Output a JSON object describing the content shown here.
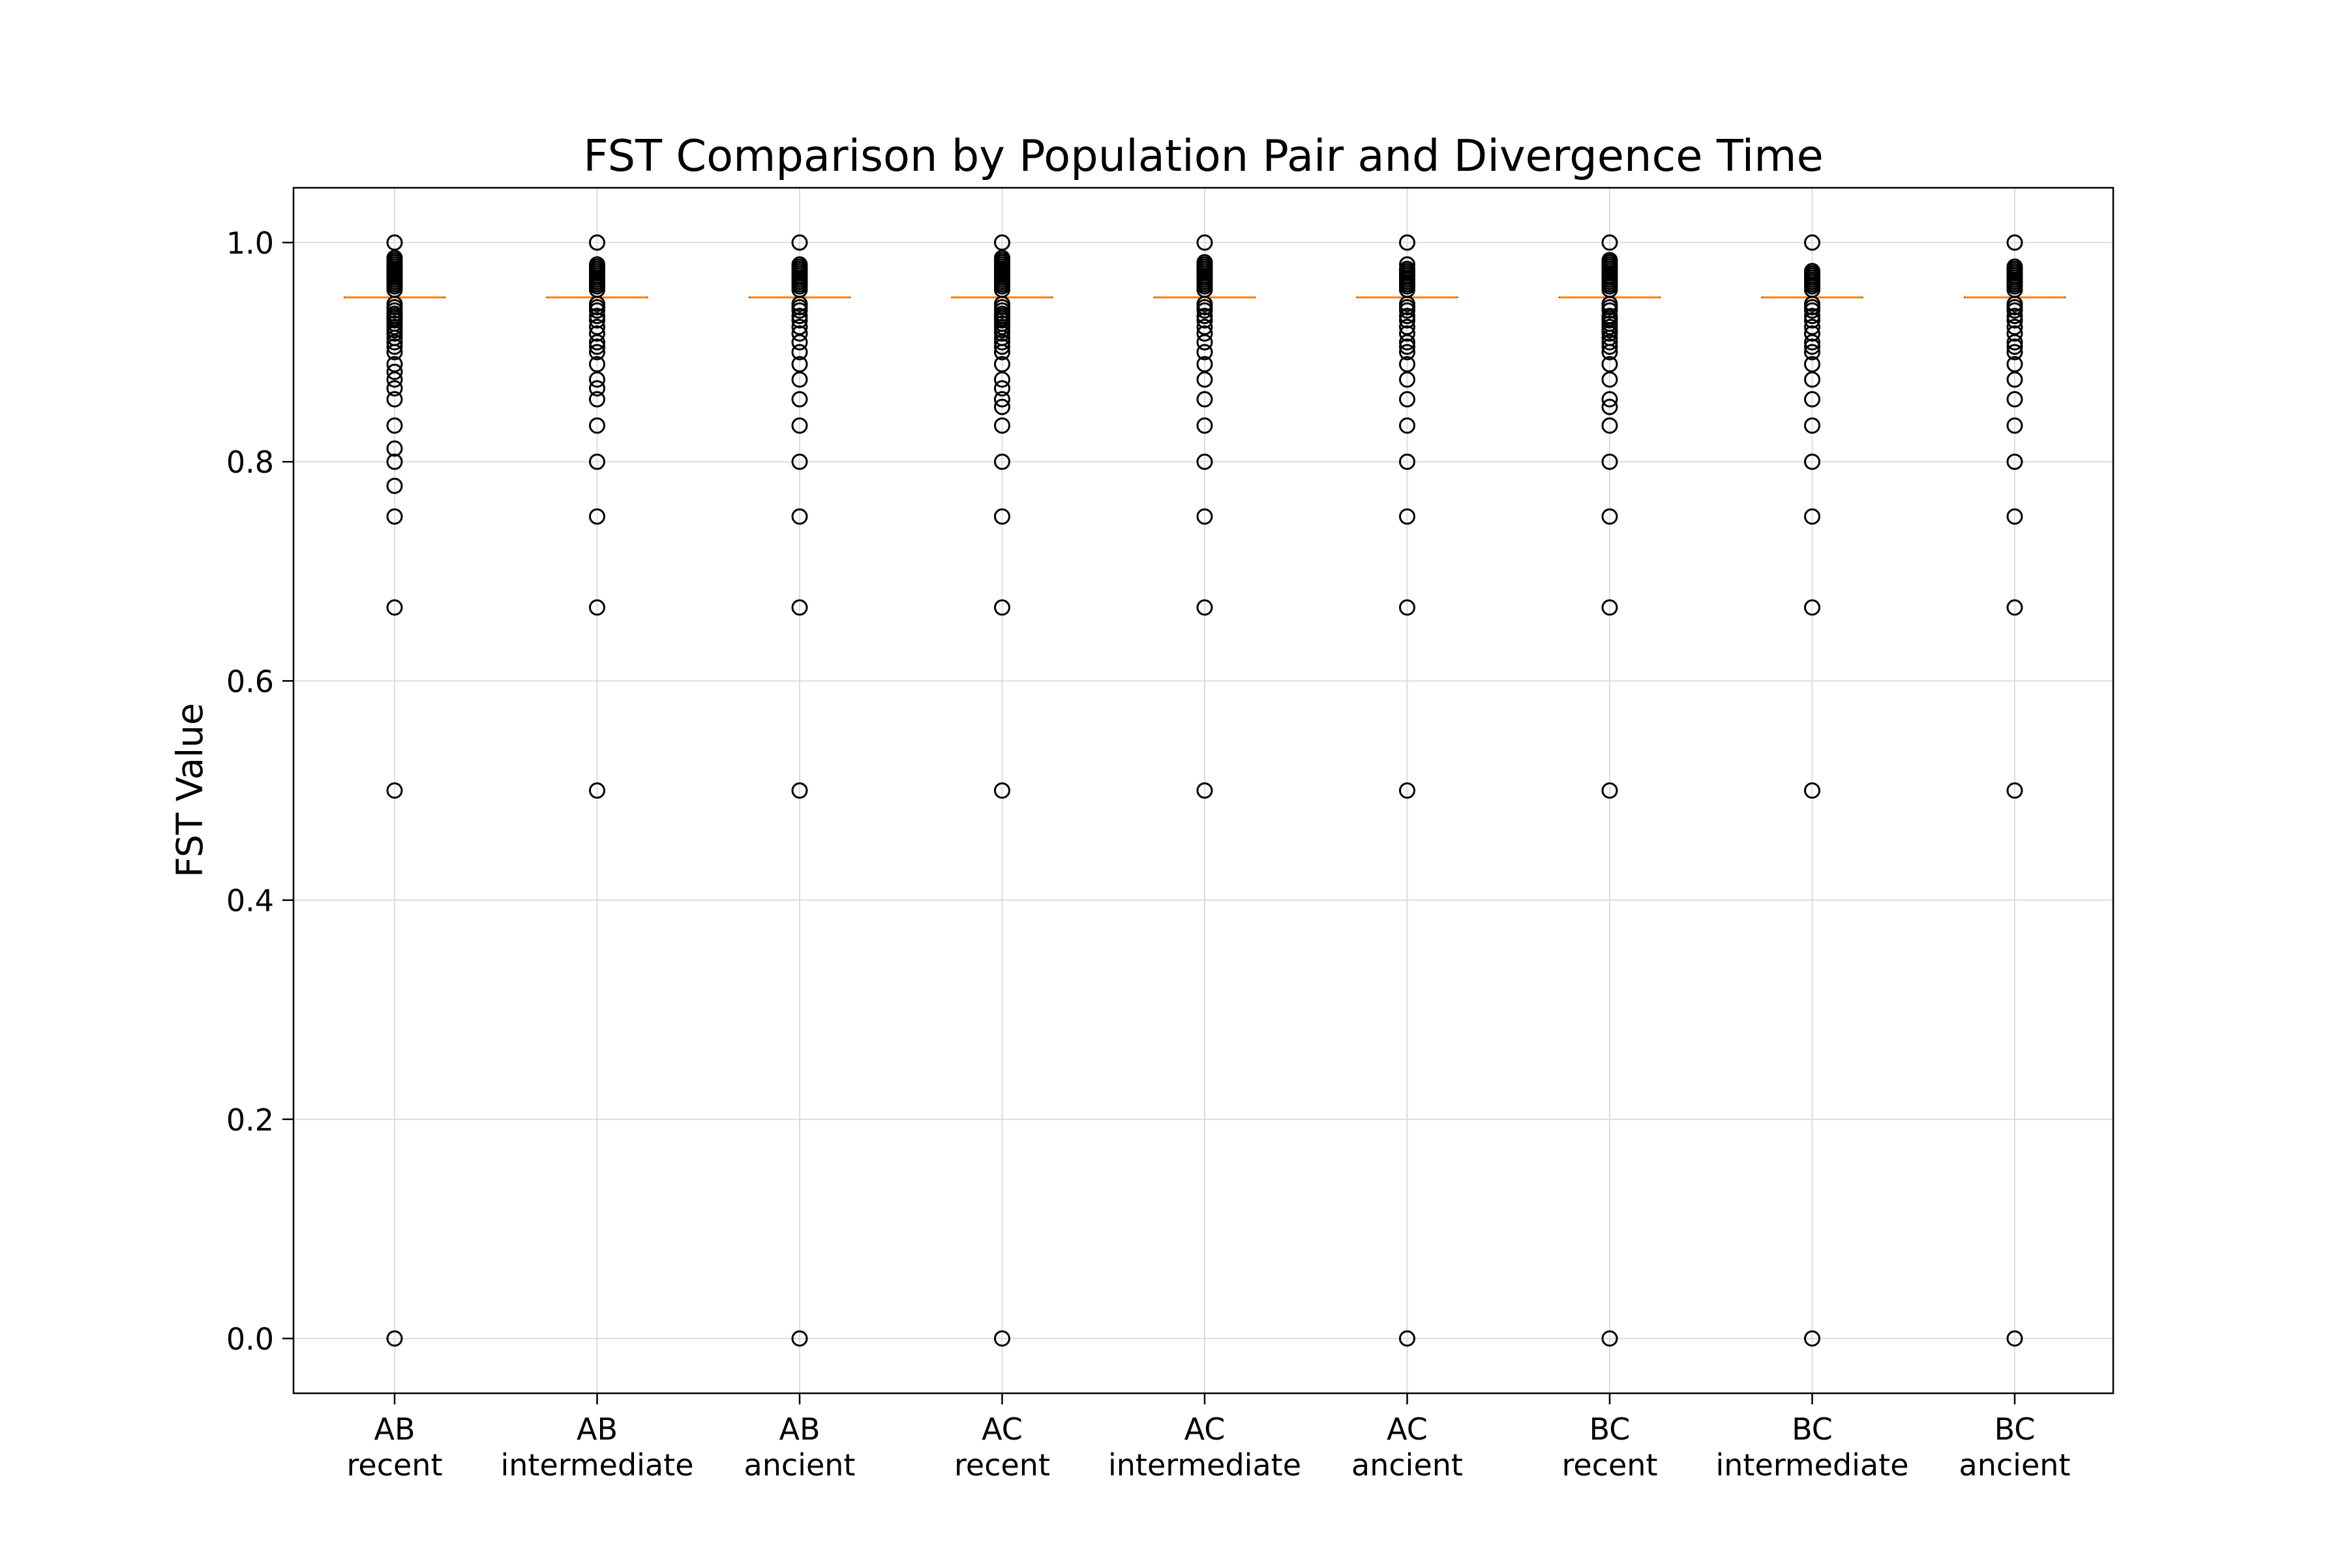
{
  "chart_data": {
    "type": "box",
    "title": "FST Comparison by Population Pair and Divergence Time",
    "xlabel": "",
    "ylabel": "FST Value",
    "ylim": [
      -0.05,
      1.05
    ],
    "yticks": [
      0.0,
      0.2,
      0.4,
      0.6,
      0.8,
      1.0
    ],
    "ytick_labels": [
      "0.0",
      "0.2",
      "0.4",
      "0.6",
      "0.8",
      "1.0"
    ],
    "grid": true,
    "colors": {
      "median": "#ff7f0e",
      "flier": "#000000",
      "grid": "#dddddd",
      "axes": "#000000"
    },
    "categories": [
      {
        "pair": "AB",
        "time": "recent"
      },
      {
        "pair": "AB",
        "time": "intermediate"
      },
      {
        "pair": "AB",
        "time": "ancient"
      },
      {
        "pair": "AC",
        "time": "recent"
      },
      {
        "pair": "AC",
        "time": "intermediate"
      },
      {
        "pair": "AC",
        "time": "ancient"
      },
      {
        "pair": "BC",
        "time": "recent"
      },
      {
        "pair": "BC",
        "time": "intermediate"
      },
      {
        "pair": "BC",
        "time": "ancient"
      }
    ],
    "series": [
      {
        "median": 0.95,
        "q1": 0.95,
        "q3": 0.95,
        "fliers": [
          0.0,
          0.5,
          0.667,
          0.75,
          0.778,
          0.8,
          0.812,
          0.833,
          0.857,
          0.867,
          0.875,
          0.882,
          0.889,
          0.9,
          0.905,
          0.909,
          0.913,
          0.917,
          0.92,
          0.923,
          0.926,
          0.929,
          0.931,
          0.933,
          0.935,
          0.938,
          0.941,
          0.944,
          0.957,
          0.96,
          0.962,
          0.964,
          0.966,
          0.968,
          0.97,
          0.971,
          0.972,
          0.974,
          0.975,
          0.976,
          0.978,
          0.98,
          0.982,
          0.984,
          0.986,
          1.0
        ]
      },
      {
        "median": 0.95,
        "q1": 0.95,
        "q3": 0.95,
        "fliers": [
          0.5,
          0.667,
          0.75,
          0.8,
          0.833,
          0.857,
          0.867,
          0.875,
          0.889,
          0.9,
          0.905,
          0.909,
          0.917,
          0.923,
          0.929,
          0.933,
          0.938,
          0.941,
          0.944,
          0.957,
          0.96,
          0.962,
          0.964,
          0.966,
          0.968,
          0.97,
          0.972,
          0.974,
          0.976,
          0.978,
          0.98,
          1.0
        ]
      },
      {
        "median": 0.95,
        "q1": 0.95,
        "q3": 0.95,
        "fliers": [
          0.0,
          0.5,
          0.667,
          0.75,
          0.8,
          0.833,
          0.857,
          0.875,
          0.889,
          0.9,
          0.909,
          0.917,
          0.923,
          0.929,
          0.933,
          0.938,
          0.941,
          0.944,
          0.957,
          0.96,
          0.962,
          0.964,
          0.966,
          0.968,
          0.97,
          0.972,
          0.974,
          0.976,
          0.978,
          0.98,
          1.0
        ]
      },
      {
        "median": 0.95,
        "q1": 0.95,
        "q3": 0.95,
        "fliers": [
          0.0,
          0.5,
          0.667,
          0.75,
          0.8,
          0.833,
          0.85,
          0.857,
          0.867,
          0.875,
          0.889,
          0.9,
          0.905,
          0.909,
          0.913,
          0.917,
          0.92,
          0.923,
          0.926,
          0.929,
          0.931,
          0.933,
          0.935,
          0.938,
          0.941,
          0.944,
          0.957,
          0.96,
          0.962,
          0.964,
          0.966,
          0.968,
          0.97,
          0.971,
          0.972,
          0.974,
          0.975,
          0.976,
          0.978,
          0.98,
          0.982,
          0.984,
          0.986,
          1.0
        ]
      },
      {
        "median": 0.95,
        "q1": 0.95,
        "q3": 0.95,
        "fliers": [
          0.5,
          0.667,
          0.75,
          0.8,
          0.833,
          0.857,
          0.875,
          0.889,
          0.9,
          0.909,
          0.917,
          0.923,
          0.929,
          0.933,
          0.938,
          0.941,
          0.944,
          0.957,
          0.96,
          0.962,
          0.964,
          0.966,
          0.968,
          0.97,
          0.972,
          0.974,
          0.976,
          0.978,
          0.98,
          0.982,
          1.0
        ]
      },
      {
        "median": 0.95,
        "q1": 0.95,
        "q3": 0.95,
        "fliers": [
          0.0,
          0.5,
          0.667,
          0.75,
          0.8,
          0.833,
          0.857,
          0.875,
          0.889,
          0.9,
          0.905,
          0.909,
          0.917,
          0.923,
          0.929,
          0.933,
          0.938,
          0.941,
          0.944,
          0.957,
          0.96,
          0.962,
          0.964,
          0.966,
          0.968,
          0.97,
          0.972,
          0.974,
          0.976,
          0.98,
          1.0
        ]
      },
      {
        "median": 0.95,
        "q1": 0.95,
        "q3": 0.95,
        "fliers": [
          0.0,
          0.5,
          0.667,
          0.75,
          0.8,
          0.833,
          0.85,
          0.857,
          0.875,
          0.889,
          0.9,
          0.905,
          0.909,
          0.913,
          0.917,
          0.92,
          0.923,
          0.926,
          0.929,
          0.931,
          0.933,
          0.938,
          0.941,
          0.944,
          0.957,
          0.96,
          0.962,
          0.964,
          0.966,
          0.968,
          0.97,
          0.972,
          0.974,
          0.976,
          0.978,
          0.98,
          0.982,
          0.984,
          1.0
        ]
      },
      {
        "median": 0.95,
        "q1": 0.95,
        "q3": 0.95,
        "fliers": [
          0.0,
          0.5,
          0.667,
          0.75,
          0.8,
          0.833,
          0.857,
          0.875,
          0.889,
          0.9,
          0.905,
          0.909,
          0.917,
          0.923,
          0.929,
          0.933,
          0.938,
          0.941,
          0.944,
          0.957,
          0.96,
          0.962,
          0.964,
          0.966,
          0.968,
          0.97,
          0.972,
          0.974,
          1.0
        ]
      },
      {
        "median": 0.95,
        "q1": 0.95,
        "q3": 0.95,
        "fliers": [
          0.0,
          0.5,
          0.667,
          0.75,
          0.8,
          0.833,
          0.857,
          0.875,
          0.889,
          0.9,
          0.905,
          0.909,
          0.917,
          0.923,
          0.929,
          0.933,
          0.938,
          0.941,
          0.944,
          0.957,
          0.96,
          0.962,
          0.964,
          0.966,
          0.968,
          0.97,
          0.972,
          0.974,
          0.976,
          0.978,
          1.0
        ]
      }
    ]
  }
}
